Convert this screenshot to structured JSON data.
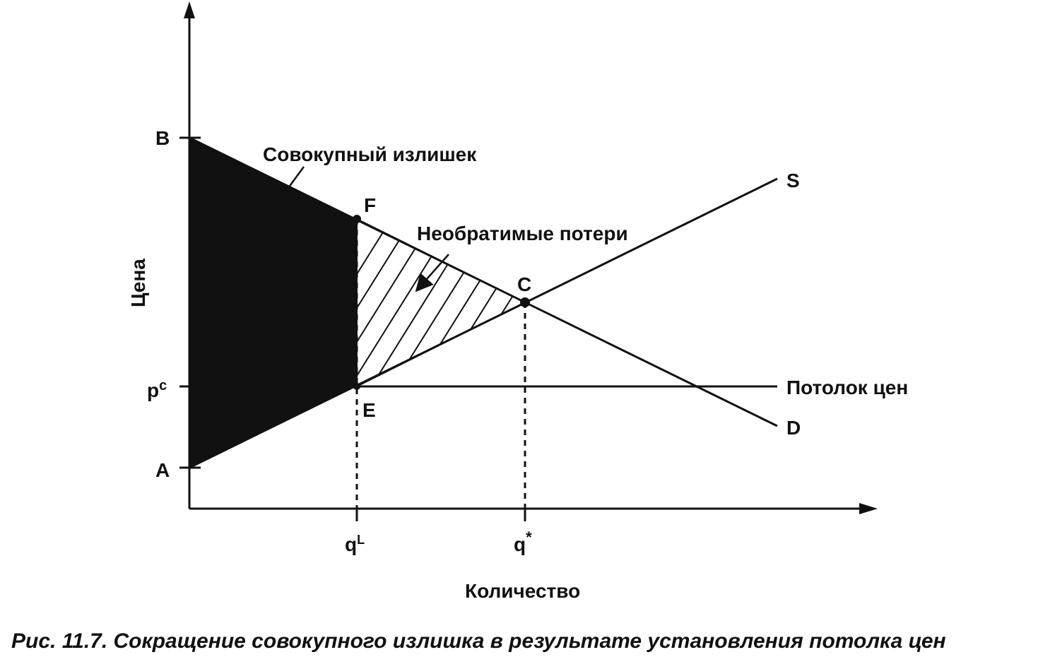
{
  "diagram": {
    "axes": {
      "y_label": "Цена",
      "x_label": "Количество"
    },
    "points": {
      "B": "B",
      "A": "A",
      "F": "F",
      "C": "C",
      "E": "E"
    },
    "price_ticks": {
      "pc_base": "p",
      "pc_sup": "c"
    },
    "quantity_ticks": {
      "qL_base": "q",
      "qL_sup": "L",
      "qstar_base": "q",
      "qstar_sup": "*"
    },
    "curves": {
      "supply": "S",
      "demand": "D",
      "price_ceiling": "Потолок цен"
    },
    "annotations": {
      "total_surplus": "Совокупный излишек",
      "deadweight_loss": "Необратимые потери"
    },
    "caption": "Рис. 11.7. Сокращение совокупного излишка в результате установления потолка цен"
  }
}
